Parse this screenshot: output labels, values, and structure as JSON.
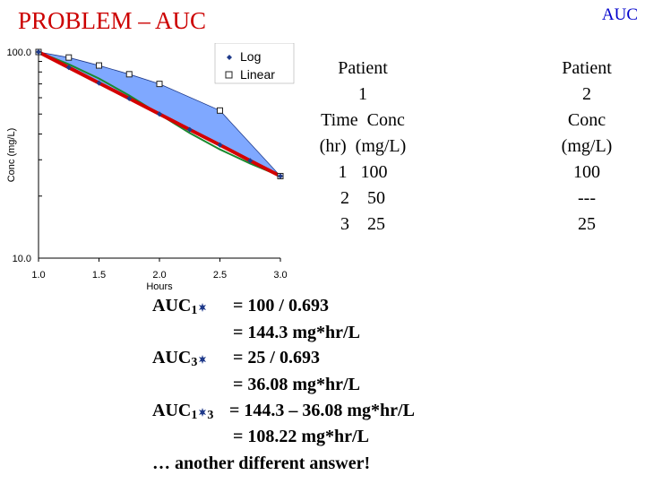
{
  "slide": {
    "title": "PROBLEM – AUC",
    "corner_label": "AUC",
    "title_color": "#cc0000",
    "corner_color": "#0000cc"
  },
  "chart_data": {
    "type": "line",
    "xlabel": "Hours",
    "ylabel": "Conc (mg/L)",
    "x_ticks": [
      "1.0",
      "1.5",
      "2.0",
      "2.5",
      "3.0"
    ],
    "y_ticks": [
      "100.0",
      "10.0"
    ],
    "xlim": [
      1.0,
      3.0
    ],
    "ylim": [
      10,
      100
    ],
    "y_scale": "log",
    "legend_position": "top-right",
    "series": [
      {
        "name": "Log",
        "marker": "diamond",
        "values_x": [
          1.0,
          1.25,
          1.5,
          1.75,
          2.0,
          2.25,
          2.5,
          2.75,
          3.0
        ],
        "values_y": [
          100,
          84.1,
          70.7,
          59.5,
          50,
          42,
          35.4,
          29.7,
          25
        ]
      },
      {
        "name": "Linear",
        "marker": "square",
        "values_x": [
          1.0,
          1.25,
          1.5,
          1.75,
          2.0,
          2.5,
          3.0
        ],
        "values_y": [
          100,
          94,
          86,
          78,
          70,
          52,
          25
        ]
      }
    ],
    "colors": {
      "fill": "#7fa8ff",
      "log_line": "#d40000",
      "linear_line": "#1a8a2e"
    }
  },
  "table": {
    "patient1": [
      "Patient",
      "1",
      "Time  Conc",
      "(hr)  (mg/L)",
      "1   100",
      "2    50",
      "3    25"
    ],
    "patient2": [
      "Patient",
      "2",
      "Conc",
      "(mg/L)",
      "100",
      "---",
      "25"
    ]
  },
  "calc": {
    "r1_label": "AUC",
    "r1_sub": "1",
    "r1_text": "= 100 / 0.693",
    "r2_text": "= 144.3 mg*hr/L",
    "r3_label": "AUC",
    "r3_sub": "3",
    "r3_text": "= 25 / 0.693",
    "r4_text": "= 36.08 mg*hr/L",
    "r5_label": "AUC",
    "r5_sub_a": "1",
    "r5_sub_b": "3",
    "r5_text": "= 144.3 – 36.08 mg*hr/L",
    "r6_text": "= 108.22 mg*hr/L",
    "r7_text": "… another different answer!"
  }
}
